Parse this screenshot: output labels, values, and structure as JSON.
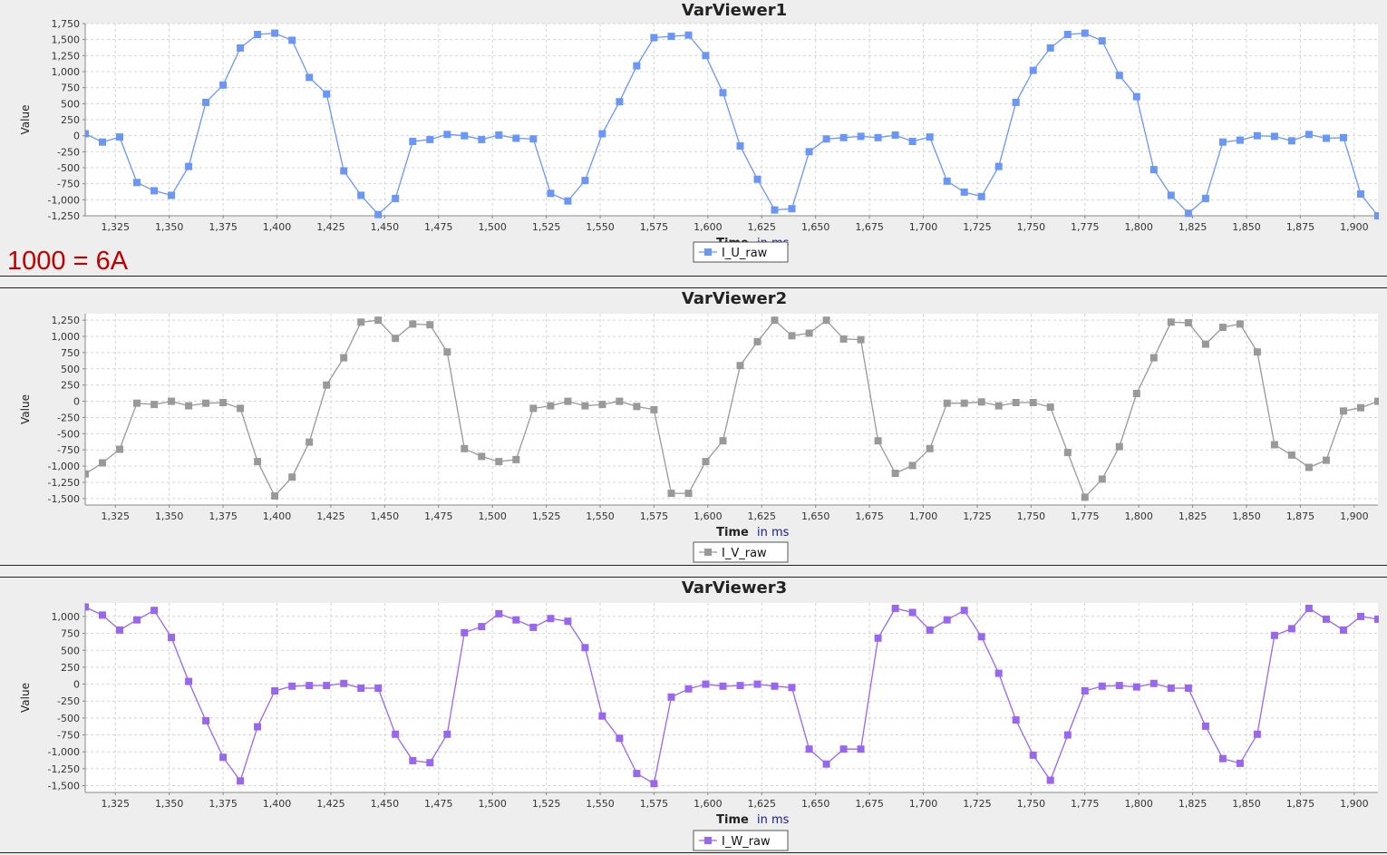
{
  "note": "1000 = 6A",
  "chart_data": [
    {
      "type": "line",
      "title": "VarViewer1",
      "xlabel": "Time",
      "xunit": "in ms",
      "ylabel": "Value",
      "xlim": [
        1311,
        1911
      ],
      "ylim": [
        -1250,
        1750
      ],
      "yticks": [
        -1250,
        -1000,
        -750,
        -500,
        -250,
        0,
        250,
        500,
        750,
        1000,
        1250,
        1500,
        1750
      ],
      "xticks": [
        1325,
        1350,
        1375,
        1400,
        1425,
        1450,
        1475,
        1500,
        1525,
        1550,
        1575,
        1600,
        1625,
        1650,
        1675,
        1700,
        1725,
        1750,
        1775,
        1800,
        1825,
        1850,
        1875,
        1900
      ],
      "grid": true,
      "legend": "bottom-center",
      "series": [
        {
          "name": "I_U_raw",
          "color": "#6a97f6",
          "x0": 1311,
          "dx": 8,
          "values": [
            30,
            -100,
            -20,
            -730,
            -860,
            -930,
            -480,
            520,
            790,
            1370,
            1580,
            1600,
            1490,
            910,
            650,
            -550,
            -930,
            -1230,
            -980,
            -90,
            -60,
            20,
            0,
            -60,
            10,
            -40,
            -50,
            -900,
            -1020,
            -700,
            30,
            530,
            1090,
            1530,
            1550,
            1570,
            1250,
            670,
            -160,
            -680,
            -1160,
            -1140,
            -250,
            -50,
            -30,
            -10,
            -30,
            10,
            -90,
            -20,
            -710,
            -880,
            -950,
            -480,
            520,
            1020,
            1370,
            1580,
            1600,
            1480,
            940,
            610,
            -530,
            -930,
            -1210,
            -980,
            -100,
            -70,
            0,
            -10,
            -80,
            20,
            -40,
            -30,
            -910,
            -1250
          ]
        }
      ]
    },
    {
      "type": "line",
      "title": "VarViewer2",
      "xlabel": "Time",
      "xunit": "in ms",
      "ylabel": "Value",
      "xlim": [
        1311,
        1911
      ],
      "ylim": [
        -1600,
        1350
      ],
      "yticks": [
        -1500,
        -1250,
        -1000,
        -750,
        -500,
        -250,
        0,
        250,
        500,
        750,
        1000,
        1250
      ],
      "xticks": [
        1325,
        1350,
        1375,
        1400,
        1425,
        1450,
        1475,
        1500,
        1525,
        1550,
        1575,
        1600,
        1625,
        1650,
        1675,
        1700,
        1725,
        1750,
        1775,
        1800,
        1825,
        1850,
        1875,
        1900
      ],
      "grid": true,
      "legend": "bottom-center",
      "series": [
        {
          "name": "I_V_raw",
          "color": "#999999",
          "x0": 1311,
          "dx": 8,
          "values": [
            -1120,
            -950,
            -740,
            -30,
            -50,
            0,
            -70,
            -30,
            -20,
            -110,
            -930,
            -1460,
            -1170,
            -630,
            250,
            670,
            1220,
            1250,
            970,
            1190,
            1180,
            760,
            -730,
            -850,
            -930,
            -900,
            -110,
            -70,
            0,
            -70,
            -50,
            0,
            -80,
            -130,
            -1420,
            -1420,
            -930,
            -610,
            550,
            920,
            1250,
            1010,
            1050,
            1250,
            960,
            950,
            -610,
            -1110,
            -990,
            -730,
            -30,
            -30,
            -10,
            -70,
            -20,
            -20,
            -90,
            -790,
            -1480,
            -1200,
            -700,
            120,
            670,
            1220,
            1210,
            880,
            1140,
            1190,
            760,
            -670,
            -830,
            -1020,
            -910,
            -150,
            -100,
            0
          ]
        }
      ]
    },
    {
      "type": "line",
      "title": "VarViewer3",
      "xlabel": "Time",
      "xunit": "in ms",
      "ylabel": "Value",
      "xlim": [
        1311,
        1911
      ],
      "ylim": [
        -1600,
        1200
      ],
      "yticks": [
        -1500,
        -1250,
        -1000,
        -750,
        -500,
        -250,
        0,
        250,
        500,
        750,
        1000
      ],
      "xticks": [
        1325,
        1350,
        1375,
        1400,
        1425,
        1450,
        1475,
        1500,
        1525,
        1550,
        1575,
        1600,
        1625,
        1650,
        1675,
        1700,
        1725,
        1750,
        1775,
        1800,
        1825,
        1850,
        1875,
        1900
      ],
      "grid": true,
      "legend": "bottom-center",
      "series": [
        {
          "name": "I_W_raw",
          "color": "#9966ee",
          "x0": 1311,
          "dx": 8,
          "values": [
            1140,
            1020,
            800,
            950,
            1090,
            690,
            40,
            -540,
            -1080,
            -1430,
            -630,
            -100,
            -30,
            -20,
            -20,
            10,
            -60,
            -60,
            -740,
            -1130,
            -1160,
            -740,
            760,
            850,
            1040,
            950,
            840,
            970,
            930,
            540,
            -470,
            -800,
            -1320,
            -1470,
            -190,
            -70,
            0,
            -30,
            -20,
            0,
            -30,
            -50,
            -960,
            -1180,
            -960,
            -960,
            680,
            1120,
            1060,
            800,
            950,
            1090,
            700,
            160,
            -530,
            -1050,
            -1420,
            -750,
            -100,
            -30,
            -20,
            -40,
            10,
            -60,
            -60,
            -620,
            -1100,
            -1170,
            -740,
            720,
            820,
            1120,
            960,
            800,
            1000,
            960
          ]
        }
      ]
    }
  ]
}
